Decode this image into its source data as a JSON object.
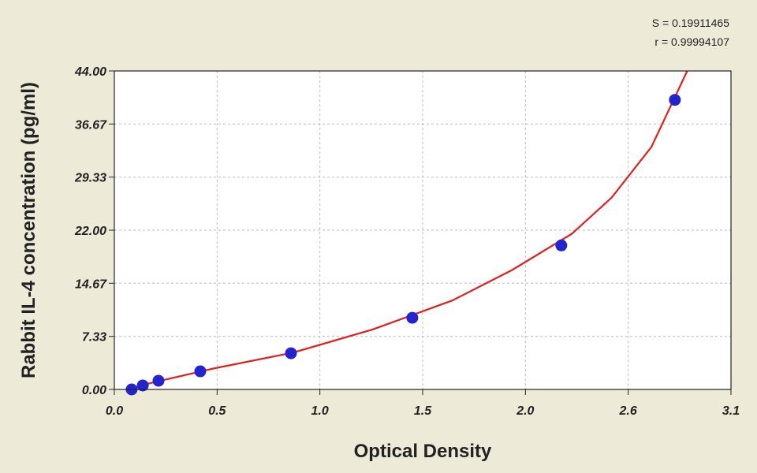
{
  "chart_data": {
    "type": "scatter",
    "annotations": [
      "S = 0.19911465",
      "r = 0.99994107"
    ],
    "x_label": "Optical Density",
    "y_label": "Rabbit IL-4 concentration (pg/ml)",
    "xlim": [
      0,
      3.1
    ],
    "ylim": [
      0,
      44
    ],
    "xticks": [
      {
        "value": 0,
        "label": "0.0"
      },
      {
        "value": 0.5167,
        "label": "0.5"
      },
      {
        "value": 1.0333,
        "label": "1.0"
      },
      {
        "value": 1.55,
        "label": "1.5"
      },
      {
        "value": 2.0667,
        "label": "2.0"
      },
      {
        "value": 2.5833,
        "label": "2.6"
      },
      {
        "value": 3.1,
        "label": "3.1"
      }
    ],
    "yticks": [
      {
        "value": 0,
        "label": "0.00"
      },
      {
        "value": 7.33,
        "label": "7.33"
      },
      {
        "value": 14.67,
        "label": "14.67"
      },
      {
        "value": 22,
        "label": "22.00"
      },
      {
        "value": 29.33,
        "label": "29.33"
      },
      {
        "value": 36.67,
        "label": "36.67"
      },
      {
        "value": 44,
        "label": "44.00"
      }
    ],
    "grid": true,
    "series": [
      {
        "color": "#2323d0",
        "x": [
          0.087,
          0.143,
          0.222,
          0.432,
          0.888,
          1.498,
          2.247,
          2.818
        ],
        "values": [
          0,
          0.55,
          1.2,
          2.5,
          5.0,
          9.9,
          19.9,
          40.0
        ]
      }
    ],
    "fit": {
      "color": "#e01f1f",
      "x": [
        0.06,
        0.2,
        0.5,
        0.9,
        1.3,
        1.7,
        2.0,
        2.3,
        2.5,
        2.7,
        2.88
      ],
      "values": [
        0,
        1.0,
        2.9,
        5.1,
        8.3,
        12.3,
        16.5,
        21.5,
        26.5,
        33.5,
        44
      ]
    }
  }
}
